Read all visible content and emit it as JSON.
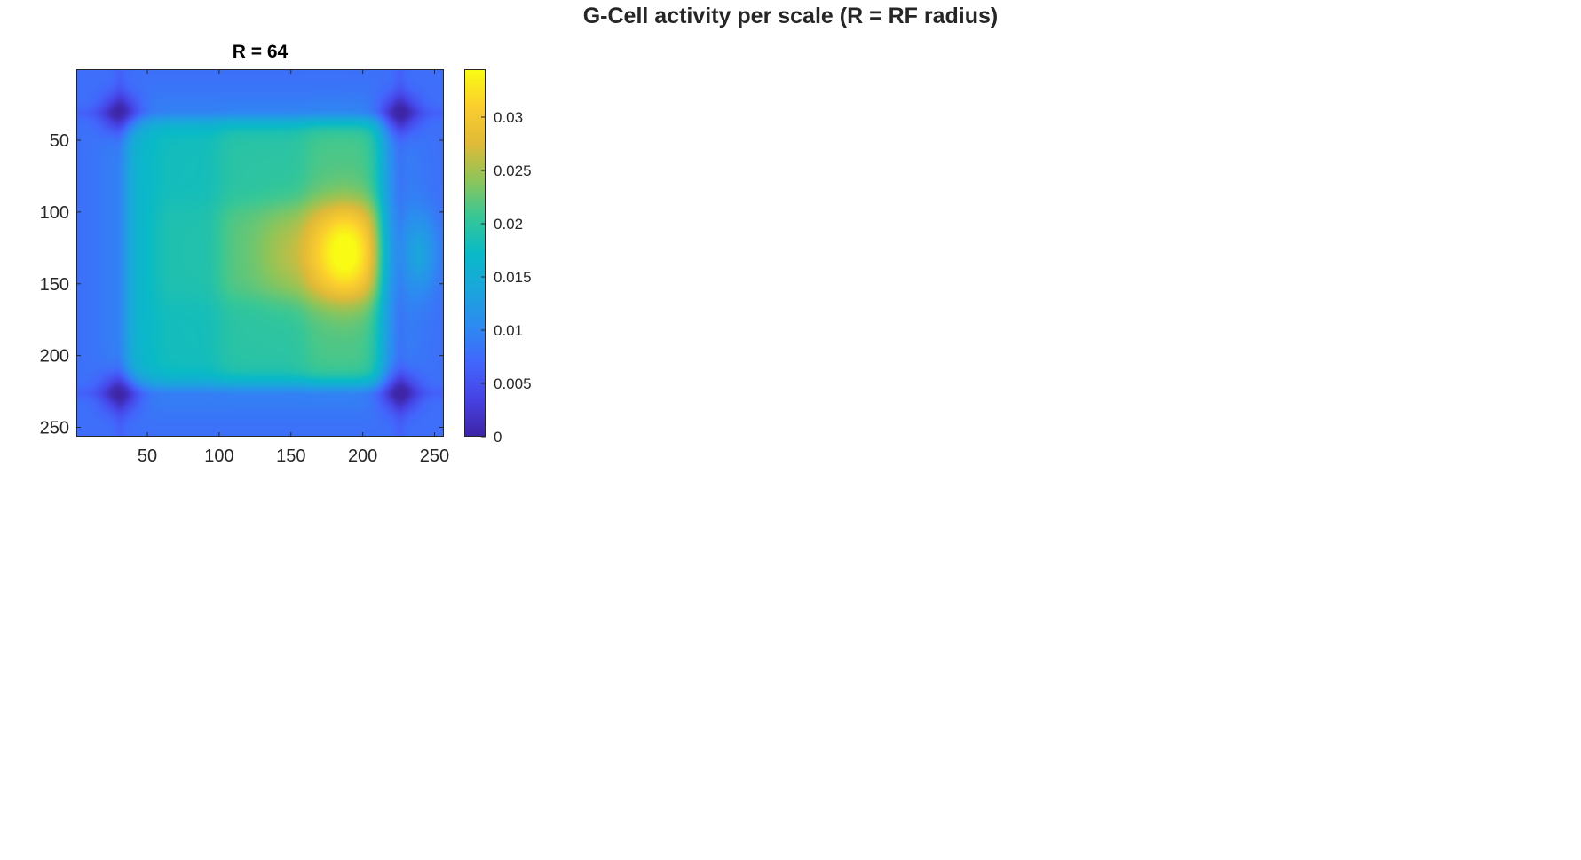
{
  "figure": {
    "suptitle": "G-Cell activity per scale (R = RF radius)"
  },
  "chart_data": {
    "type": "heatmap",
    "title": "R = 64",
    "xlabel": "",
    "ylabel": "",
    "image_size": [
      256,
      256
    ],
    "xlim": [
      0.5,
      256.5
    ],
    "ylim": [
      0.5,
      256.5
    ],
    "y_direction": "reverse",
    "xticks": [
      50,
      100,
      150,
      200,
      250
    ],
    "xtick_labels": [
      "50",
      "100",
      "150",
      "200",
      "250"
    ],
    "yticks": [
      50,
      100,
      150,
      200,
      250
    ],
    "ytick_labels": [
      "50",
      "100",
      "150",
      "200",
      "250"
    ],
    "colormap": "parula",
    "clim": [
      0,
      0.0345
    ],
    "colorbar": {
      "ticks": [
        0,
        0.005,
        0.01,
        0.015,
        0.02,
        0.025,
        0.03
      ],
      "tick_labels": [
        "0",
        "0.005",
        "0.01",
        "0.015",
        "0.02",
        "0.025",
        "0.03"
      ],
      "location": "right"
    },
    "grid": false,
    "structure": {
      "background_value": 0.009,
      "border_dark_value": 0.004,
      "corner_dark_points": [
        [
          30,
          30
        ],
        [
          226,
          30
        ],
        [
          30,
          226
        ],
        [
          226,
          226
        ]
      ],
      "inner_box_x": [
        35,
        215
      ],
      "inner_box_y": [
        35,
        220
      ],
      "inner_box_value": 0.017,
      "mid_band_y": [
        95,
        160
      ],
      "column_bands": [
        {
          "x": [
            55,
            100
          ],
          "value": 0.019
        },
        {
          "x": [
            100,
            160
          ],
          "value": 0.022
        },
        {
          "x": [
            160,
            215
          ],
          "value": 0.025
        }
      ],
      "hotspots": [
        {
          "x": 148,
          "y": 128,
          "value": 0.028
        },
        {
          "x": 188,
          "y": 128,
          "value": 0.0345
        }
      ],
      "right_lobe": {
        "x": 240,
        "y": 128,
        "value": 0.014
      }
    }
  }
}
